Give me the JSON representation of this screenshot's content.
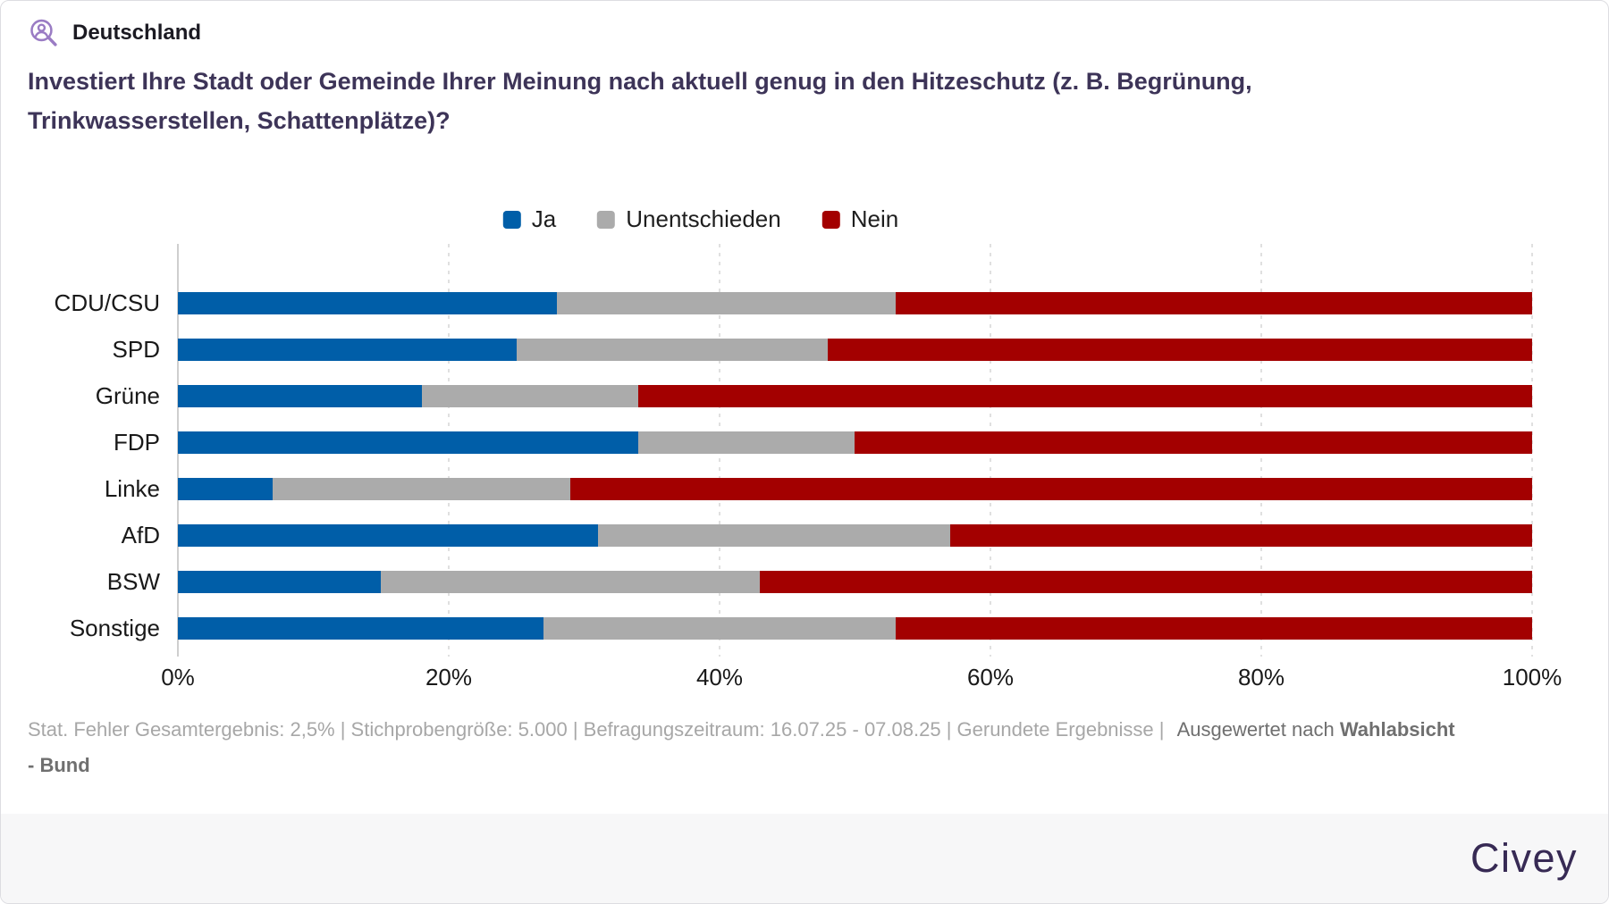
{
  "header": {
    "icon": "person-search-icon",
    "region_label": "Deutschland"
  },
  "question": "Investiert Ihre Stadt oder Gemeinde Ihrer Meinung nach aktuell genug in den Hitzeschutz (z. B. Begrünung, Trinkwasserstellen, Schattenplätze)?",
  "legend": [
    {
      "label": "Ja",
      "color": "#005ea8"
    },
    {
      "label": "Unentschieden",
      "color": "#ababab"
    },
    {
      "label": "Nein",
      "color": "#a30000"
    }
  ],
  "chart_data": {
    "type": "bar",
    "orientation": "horizontal",
    "stacked": true,
    "categories": [
      "CDU/CSU",
      "SPD",
      "Grüne",
      "FDP",
      "Linke",
      "AfD",
      "BSW",
      "Sonstige"
    ],
    "series": [
      {
        "name": "Ja",
        "color": "#005ea8",
        "values": [
          28,
          25,
          18,
          34,
          7,
          31,
          15,
          27
        ]
      },
      {
        "name": "Unentschieden",
        "color": "#ababab",
        "values": [
          25,
          23,
          16,
          16,
          22,
          26,
          28,
          26
        ]
      },
      {
        "name": "Nein",
        "color": "#a30000",
        "values": [
          47,
          52,
          66,
          50,
          71,
          43,
          57,
          47
        ]
      }
    ],
    "unit": "%",
    "xlim": [
      0,
      100
    ],
    "x_ticks": [
      "0%",
      "20%",
      "40%",
      "60%",
      "80%",
      "100%"
    ],
    "grid": "dotted-vertical",
    "legend_position": "top-center"
  },
  "footnote": {
    "muted": "Stat. Fehler Gesamtergebnis: 2,5% | Stichprobengröße: 5.000 | Befragungszeitraum: 16.07.25 - 07.08.25 | Gerundete Ergebnisse | ",
    "evaluated_prefix": "Ausgewertet nach ",
    "evaluated_bold": "Wahlabsicht",
    "evaluated_bold_line2": "- Bund"
  },
  "branding": {
    "logo_text": "Civey"
  },
  "colors": {
    "ja_blue": "#005ea8",
    "unentschieden_gray": "#ababab",
    "nein_red": "#a30000",
    "question_purple": "#3d3458",
    "icon_purple": "#9a7cc4",
    "brand_purple": "#372a54",
    "grid_gray": "#e0e0e0",
    "axis_gray": "#cfcfcf",
    "footnote_gray": "#a7a7a7",
    "strip_background": "#f7f7f8"
  }
}
